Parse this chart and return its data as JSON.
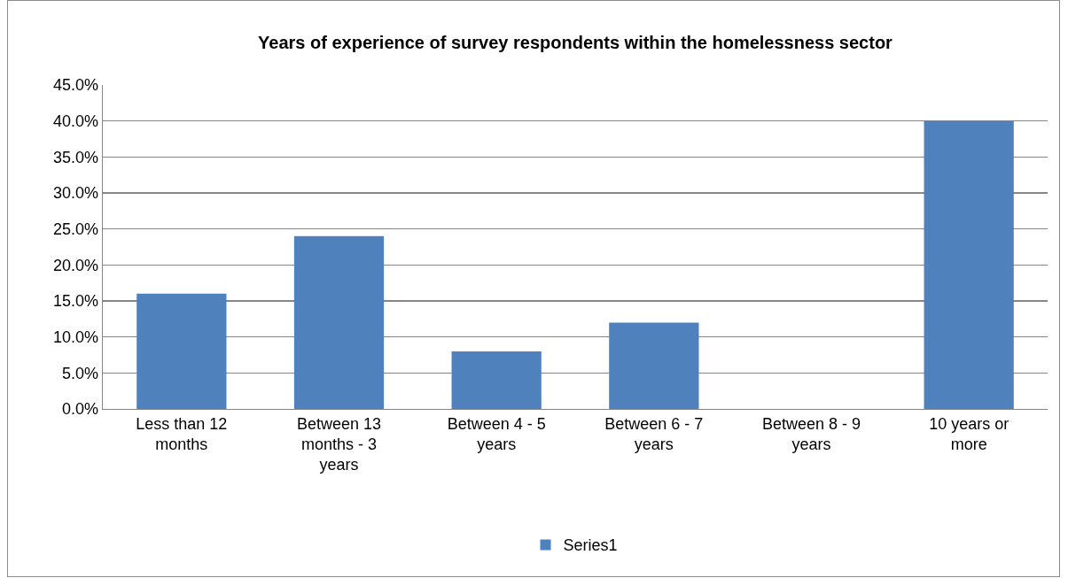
{
  "chart_data": {
    "type": "bar",
    "title": "Years of experience of survey respondents within the homelessness sector",
    "categories": [
      "Less than 12 months",
      "Between 13 months - 3 years",
      "Between 4 - 5 years",
      "Between 6 - 7 years",
      "Between 8 - 9 years",
      "10 years or more"
    ],
    "series": [
      {
        "name": "Series1",
        "color": "#4f81bd",
        "values": [
          16,
          24,
          8,
          12,
          0,
          40
        ]
      }
    ],
    "ylim": [
      0,
      45
    ],
    "yticks": [
      {
        "value": 0,
        "label": "0.0%"
      },
      {
        "value": 5,
        "label": "5.0%"
      },
      {
        "value": 10,
        "label": "10.0%"
      },
      {
        "value": 15,
        "label": "15.0%"
      },
      {
        "value": 20,
        "label": "20.0%"
      },
      {
        "value": 25,
        "label": "25.0%"
      },
      {
        "value": 30,
        "label": "30.0%"
      },
      {
        "value": 35,
        "label": "35.0%"
      },
      {
        "value": 40,
        "label": "40.0%"
      },
      {
        "value": 45,
        "label": "45.0%"
      }
    ],
    "grid": "y",
    "legend": "bottom"
  }
}
